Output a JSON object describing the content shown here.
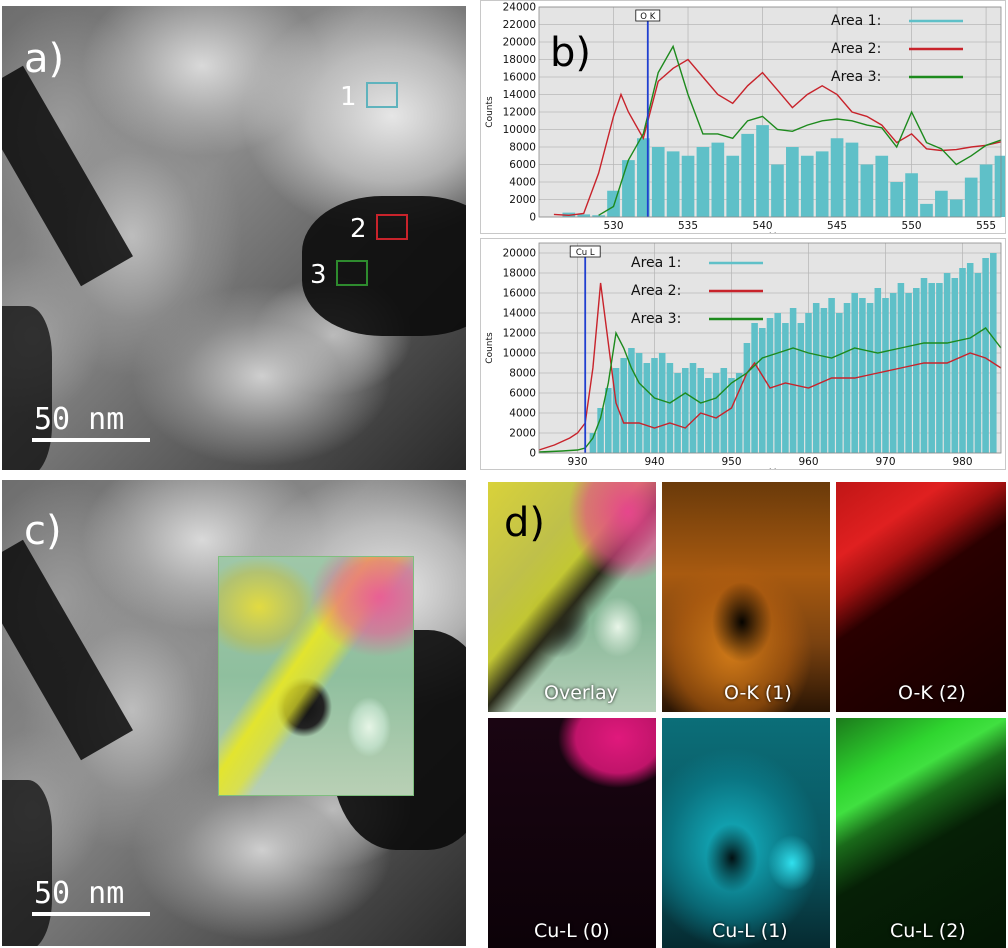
{
  "panels": {
    "a": {
      "label": "a)",
      "scale_text": "50 nm",
      "rois": [
        {
          "label": "1",
          "color": "#5fb3bd"
        },
        {
          "label": "2",
          "color": "#c8232b"
        },
        {
          "label": "3",
          "color": "#2e8b2e"
        }
      ]
    },
    "b": {
      "label": "b)"
    },
    "c": {
      "label": "c)",
      "scale_text": "50 nm"
    },
    "d": {
      "label": "d)",
      "maps": [
        {
          "label": "Overlay",
          "color": "#b3c9b8"
        },
        {
          "label": "O-K (1)",
          "color": "#c36a10"
        },
        {
          "label": "O-K (2)",
          "color": "#d21818"
        },
        {
          "label": "Cu-L (0)",
          "color": "#e0197c"
        },
        {
          "label": "Cu-L (1)",
          "color": "#19c7d6"
        },
        {
          "label": "Cu-L (2)",
          "color": "#2fd62f"
        }
      ]
    }
  },
  "chart_data": [
    {
      "type": "line",
      "edge_marker": "O K",
      "xlabel": "eV",
      "ylabel": "Counts",
      "xlim": [
        525,
        556
      ],
      "ylim": [
        0,
        24000
      ],
      "x_ticks": [
        530,
        535,
        540,
        545,
        550,
        555
      ],
      "y_ticks": [
        0,
        2000,
        4000,
        6000,
        8000,
        10000,
        12000,
        14000,
        16000,
        18000,
        20000,
        22000,
        24000
      ],
      "marker_x": 532.3,
      "legend_position": "top-right",
      "series": [
        {
          "name": "Area 1:",
          "color": "#5fc0c8",
          "style": "bars",
          "x": [
            527,
            528,
            529,
            530,
            531,
            532,
            533,
            534,
            535,
            536,
            537,
            538,
            539,
            540,
            541,
            542,
            543,
            544,
            545,
            546,
            547,
            548,
            549,
            550,
            551,
            552,
            553,
            554,
            555,
            556
          ],
          "values": [
            500,
            300,
            200,
            3000,
            6500,
            9000,
            8000,
            7500,
            7000,
            8000,
            8500,
            7000,
            9500,
            10500,
            6000,
            8000,
            7000,
            7500,
            9000,
            8500,
            6000,
            7000,
            4000,
            5000,
            1500,
            3000,
            2000,
            4500,
            6000,
            7000
          ]
        },
        {
          "name": "Area 2:",
          "color": "#c8232b",
          "style": "line",
          "x": [
            526,
            527,
            528,
            529,
            530,
            530.5,
            531,
            532,
            533,
            534,
            535,
            536,
            537,
            538,
            539,
            540,
            541,
            542,
            543,
            544,
            545,
            546,
            547,
            548,
            549,
            550,
            551,
            552,
            553,
            554,
            555,
            556
          ],
          "values": [
            300,
            200,
            400,
            5000,
            11500,
            14000,
            12000,
            9000,
            15500,
            17000,
            18000,
            16000,
            14000,
            13000,
            15000,
            16500,
            14500,
            12500,
            14000,
            15000,
            14000,
            12000,
            11500,
            10500,
            8500,
            9500,
            7800,
            7600,
            7700,
            8000,
            8200,
            8600
          ]
        },
        {
          "name": "Area 3:",
          "color": "#1d8a1d",
          "style": "line",
          "x": [
            529,
            530,
            531,
            532,
            533,
            534,
            535,
            536,
            537,
            538,
            539,
            540,
            541,
            542,
            543,
            544,
            545,
            546,
            547,
            548,
            549,
            550,
            551,
            552,
            553,
            554,
            555,
            556
          ],
          "values": [
            200,
            1200,
            6500,
            9500,
            16500,
            19500,
            14000,
            9500,
            9500,
            9000,
            11000,
            11500,
            10000,
            9800,
            10500,
            11000,
            11200,
            11000,
            10500,
            10200,
            8000,
            12000,
            8500,
            7800,
            6000,
            7000,
            8200,
            8800
          ]
        }
      ]
    },
    {
      "type": "line",
      "edge_marker": "Cu L",
      "xlabel": "eV",
      "ylabel": "Counts",
      "xlim": [
        925,
        985
      ],
      "ylim": [
        0,
        21000
      ],
      "x_ticks": [
        930,
        940,
        950,
        960,
        970,
        980
      ],
      "y_ticks": [
        0,
        2000,
        4000,
        6000,
        8000,
        10000,
        12000,
        14000,
        16000,
        18000,
        20000
      ],
      "marker_x": 931,
      "legend_position": "top-left",
      "series": [
        {
          "name": "Area 1:",
          "color": "#5fc0c8",
          "style": "bars",
          "x": [
            932,
            933,
            934,
            935,
            936,
            937,
            938,
            939,
            940,
            941,
            942,
            943,
            944,
            945,
            946,
            947,
            948,
            949,
            950,
            951,
            952,
            953,
            954,
            955,
            956,
            957,
            958,
            959,
            960,
            961,
            962,
            963,
            964,
            965,
            966,
            967,
            968,
            969,
            970,
            971,
            972,
            973,
            974,
            975,
            976,
            977,
            978,
            979,
            980,
            981,
            982,
            983,
            984
          ],
          "values": [
            2000,
            4500,
            6500,
            8500,
            9500,
            10500,
            10000,
            9000,
            9500,
            10000,
            9000,
            8000,
            8500,
            9000,
            8500,
            7500,
            8000,
            8500,
            7500,
            8000,
            11000,
            13000,
            12500,
            13500,
            14000,
            13000,
            14500,
            13000,
            14000,
            15000,
            14500,
            15500,
            14000,
            15000,
            16000,
            15500,
            15000,
            16500,
            15500,
            16000,
            17000,
            16000,
            16500,
            17500,
            17000,
            17000,
            18000,
            17500,
            18500,
            19000,
            18000,
            19500,
            20000
          ]
        },
        {
          "name": "Area 2:",
          "color": "#c8232b",
          "style": "line",
          "x": [
            925,
            927,
            929,
            930,
            931,
            932,
            933,
            934,
            935,
            936,
            938,
            940,
            942,
            944,
            946,
            948,
            950,
            952,
            953,
            955,
            957,
            960,
            963,
            966,
            969,
            972,
            975,
            978,
            981,
            983,
            985
          ],
          "values": [
            300,
            800,
            1500,
            2000,
            3000,
            8500,
            17000,
            11000,
            5000,
            3000,
            3000,
            2500,
            3000,
            2500,
            4000,
            3500,
            4500,
            8000,
            9000,
            6500,
            7000,
            6500,
            7500,
            7500,
            8000,
            8500,
            9000,
            9000,
            10000,
            9500,
            8500
          ]
        },
        {
          "name": "Area 3:",
          "color": "#1d8a1d",
          "style": "line",
          "x": [
            925,
            928,
            930,
            931,
            932,
            933,
            934,
            935,
            936,
            937,
            938,
            940,
            942,
            944,
            946,
            948,
            950,
            952,
            954,
            956,
            958,
            960,
            963,
            966,
            969,
            972,
            975,
            978,
            981,
            983,
            985
          ],
          "values": [
            100,
            200,
            300,
            500,
            1500,
            3500,
            7000,
            12000,
            10500,
            8500,
            7000,
            5500,
            5000,
            6000,
            5000,
            5500,
            7000,
            8000,
            9500,
            10000,
            10500,
            10000,
            9500,
            10500,
            10000,
            10500,
            11000,
            11000,
            11500,
            12500,
            10500
          ]
        }
      ]
    }
  ]
}
